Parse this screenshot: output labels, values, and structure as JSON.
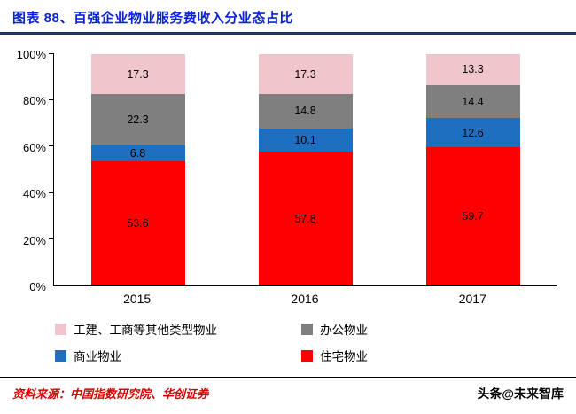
{
  "header": {
    "title": "图表 88、百强企业物业服务费收入分业态占比",
    "title_color": "#0b23d4",
    "rule_color": "#1f3864"
  },
  "chart_data": {
    "type": "bar",
    "stacked": true,
    "title": "百强企业物业服务费收入分业态占比",
    "categories": [
      "2015",
      "2016",
      "2017"
    ],
    "series": [
      {
        "name": "住宅物业",
        "color": "#fe0000",
        "values": [
          53.6,
          57.8,
          59.7
        ]
      },
      {
        "name": "商业物业",
        "color": "#1f6fc0",
        "values": [
          6.8,
          10.1,
          12.6
        ]
      },
      {
        "name": "办公物业",
        "color": "#7f7f7f",
        "values": [
          22.3,
          14.8,
          14.4
        ]
      },
      {
        "name": "工建、工商等其他类型物业",
        "color": "#f1c5cc",
        "values": [
          17.3,
          17.3,
          13.3
        ]
      }
    ],
    "xlabel": "",
    "ylabel": "",
    "ylim": [
      0,
      100
    ],
    "yticks": [
      "0%",
      "20%",
      "40%",
      "60%",
      "80%",
      "100%"
    ],
    "grid": false,
    "legend_position": "bottom",
    "data_label_decimals": 1
  },
  "footer": {
    "source": "资料来源：中国指数研究院、华创证券",
    "watermark": "头条@未来智库",
    "source_color": "#d40000"
  }
}
